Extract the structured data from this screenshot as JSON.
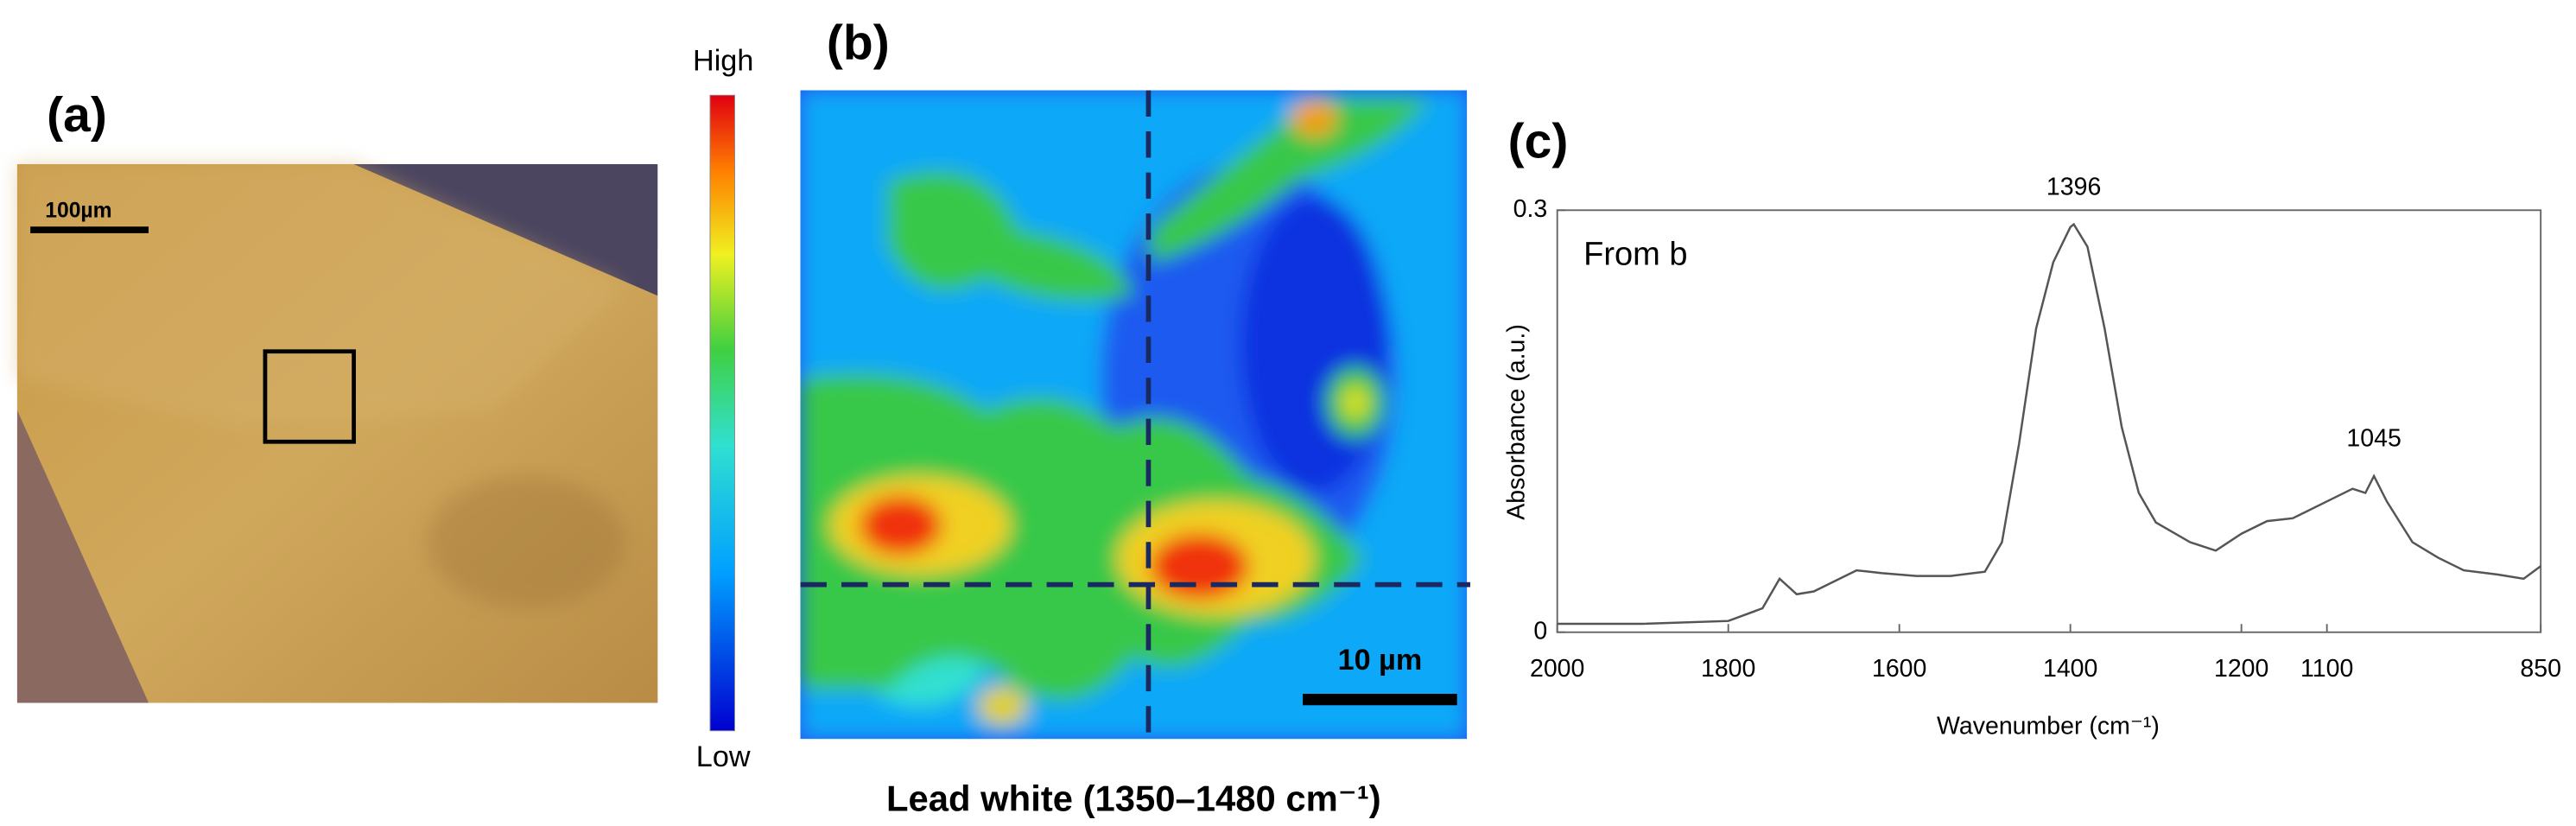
{
  "panel_a": {
    "label": "(a)",
    "scale_bar": "100µm"
  },
  "panel_b": {
    "label": "(b)",
    "colorbar_high": "High",
    "colorbar_low": "Low",
    "scale_bar": "10 µm",
    "caption": "Lead white (1350–1480 cm⁻¹)"
  },
  "chart_data": {
    "type": "line",
    "panel_label": "(c)",
    "annotation": "From b",
    "x_label": "Wavenumber (cm⁻¹)",
    "y_label": "Absorbance (a.u.)",
    "x": [
      2000,
      1900,
      1800,
      1760,
      1740,
      1720,
      1700,
      1680,
      1650,
      1620,
      1580,
      1540,
      1500,
      1480,
      1460,
      1440,
      1420,
      1400,
      1396,
      1380,
      1360,
      1340,
      1320,
      1300,
      1260,
      1230,
      1200,
      1170,
      1140,
      1100,
      1070,
      1055,
      1045,
      1030,
      1000,
      970,
      940,
      900,
      870,
      850
    ],
    "values": [
      0.006,
      0.006,
      0.008,
      0.017,
      0.038,
      0.027,
      0.029,
      0.035,
      0.044,
      0.042,
      0.04,
      0.04,
      0.043,
      0.064,
      0.134,
      0.216,
      0.263,
      0.288,
      0.29,
      0.274,
      0.216,
      0.146,
      0.099,
      0.078,
      0.064,
      0.058,
      0.07,
      0.079,
      0.081,
      0.093,
      0.102,
      0.099,
      0.111,
      0.093,
      0.064,
      0.053,
      0.044,
      0.041,
      0.038,
      0.047
    ],
    "color": "#555555",
    "peak_labels": [
      {
        "x": 1396,
        "y": 0.29,
        "label": "1396"
      },
      {
        "x": 1045,
        "y": 0.111,
        "label": "1045"
      }
    ],
    "xlim": [
      2000,
      850
    ],
    "ylim": [
      0,
      0.3
    ],
    "xticks": [
      2000,
      1800,
      1600,
      1400,
      1200,
      1100,
      850
    ],
    "yticks": [
      0,
      0.3
    ]
  }
}
